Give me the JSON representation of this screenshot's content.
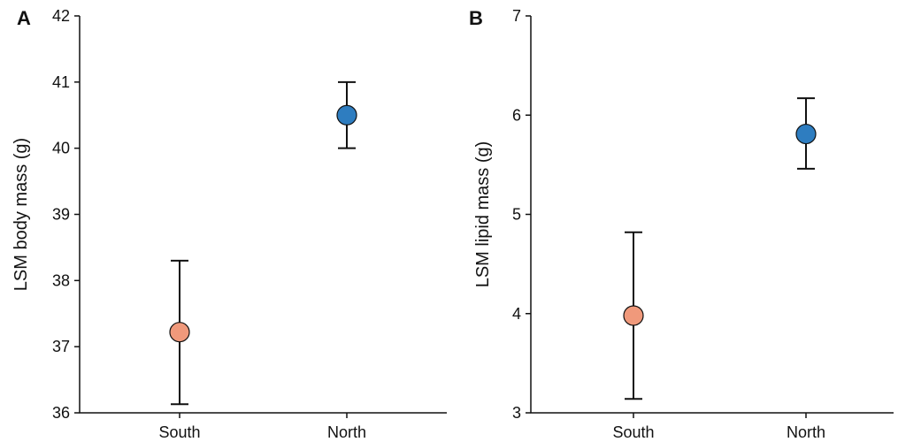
{
  "chart_data": [
    {
      "type": "scatter",
      "panel_label": "A",
      "title": "",
      "xlabel": "",
      "ylabel": "LSM body mass (g)",
      "categories": [
        "South",
        "North"
      ],
      "ylim": [
        36,
        42
      ],
      "yticks": [
        36,
        37,
        38,
        39,
        40,
        41,
        42
      ],
      "grid": false,
      "points": [
        {
          "category": "South",
          "y": 37.22,
          "lower": 36.13,
          "upper": 38.3,
          "color": "#F0997B"
        },
        {
          "category": "North",
          "y": 40.5,
          "lower": 40.0,
          "upper": 41.0,
          "color": "#2E7DC0"
        }
      ]
    },
    {
      "type": "scatter",
      "panel_label": "B",
      "title": "",
      "xlabel": "",
      "ylabel": "LSM lipid mass (g)",
      "categories": [
        "South",
        "North"
      ],
      "ylim": [
        3,
        7
      ],
      "yticks": [
        3,
        4,
        5,
        6,
        7
      ],
      "grid": false,
      "points": [
        {
          "category": "South",
          "y": 3.98,
          "lower": 3.14,
          "upper": 4.82,
          "color": "#F0997B"
        },
        {
          "category": "North",
          "y": 5.81,
          "lower": 5.46,
          "upper": 6.17,
          "color": "#2E7DC0"
        }
      ]
    }
  ]
}
